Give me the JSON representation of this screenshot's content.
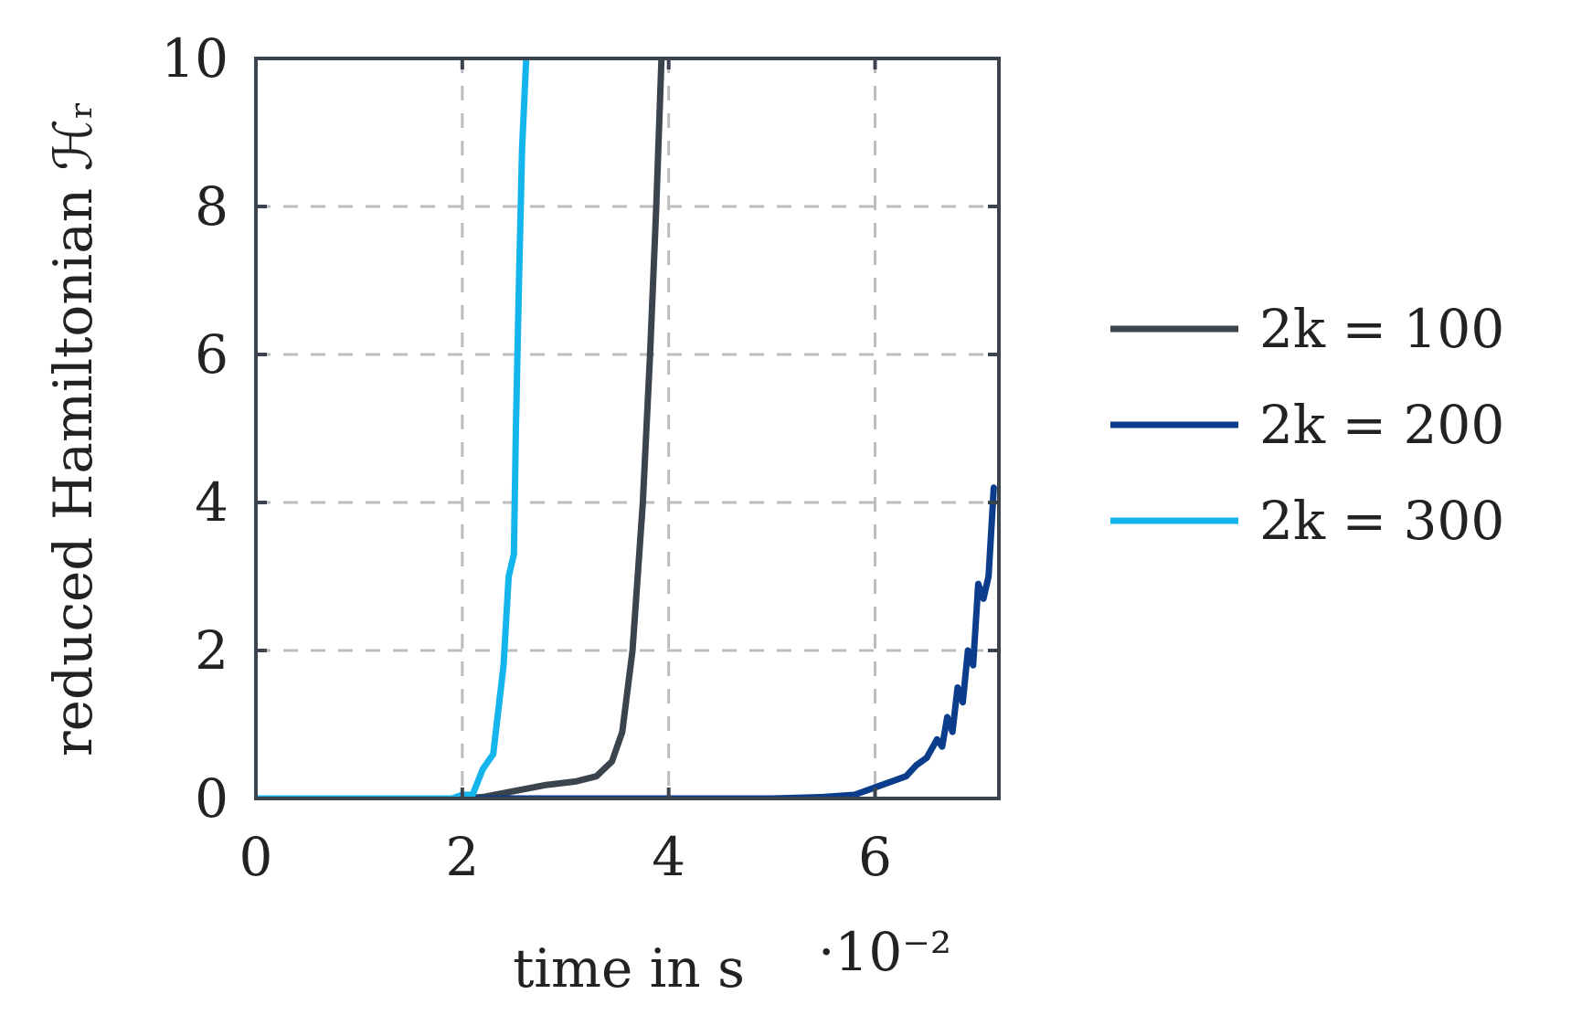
{
  "chart_data": {
    "type": "line",
    "xlabel": "time in s",
    "x_scale_label": "·10⁻²",
    "ylabel": "reduced Hamiltonian ℋᵣ",
    "xlim": [
      0,
      7.2
    ],
    "ylim": [
      0,
      10
    ],
    "x_ticks": [
      "0",
      "2",
      "4",
      "6"
    ],
    "y_ticks": [
      "0",
      "2",
      "4",
      "6",
      "8",
      "10"
    ],
    "grid": true,
    "legend_position": "outside-right",
    "series": [
      {
        "name": "2k = 100",
        "color": "#3b434d",
        "points": [
          [
            0,
            0
          ],
          [
            2.0,
            0
          ],
          [
            2.2,
            0.02
          ],
          [
            2.5,
            0.1
          ],
          [
            2.8,
            0.18
          ],
          [
            3.1,
            0.23
          ],
          [
            3.3,
            0.3
          ],
          [
            3.45,
            0.5
          ],
          [
            3.55,
            0.9
          ],
          [
            3.65,
            2.0
          ],
          [
            3.75,
            4.0
          ],
          [
            3.82,
            6.0
          ],
          [
            3.88,
            8.0
          ],
          [
            3.93,
            10.0
          ]
        ]
      },
      {
        "name": "2k = 200",
        "color": "#0b3d8c",
        "points": [
          [
            0,
            0
          ],
          [
            5.0,
            0
          ],
          [
            5.5,
            0.02
          ],
          [
            5.8,
            0.05
          ],
          [
            6.0,
            0.15
          ],
          [
            6.1,
            0.2
          ],
          [
            6.2,
            0.25
          ],
          [
            6.3,
            0.3
          ],
          [
            6.4,
            0.45
          ],
          [
            6.5,
            0.55
          ],
          [
            6.6,
            0.8
          ],
          [
            6.65,
            0.7
          ],
          [
            6.7,
            1.1
          ],
          [
            6.75,
            0.9
          ],
          [
            6.8,
            1.5
          ],
          [
            6.85,
            1.3
          ],
          [
            6.9,
            2.0
          ],
          [
            6.95,
            1.8
          ],
          [
            7.0,
            2.9
          ],
          [
            7.05,
            2.7
          ],
          [
            7.1,
            3.0
          ],
          [
            7.15,
            4.2
          ]
        ]
      },
      {
        "name": "2k = 300",
        "color": "#14b4ec",
        "points": [
          [
            0,
            0
          ],
          [
            1.9,
            0
          ],
          [
            2.0,
            0.05
          ],
          [
            2.1,
            0.05
          ],
          [
            2.2,
            0.4
          ],
          [
            2.3,
            0.6
          ],
          [
            2.4,
            1.8
          ],
          [
            2.45,
            3.0
          ],
          [
            2.5,
            3.3
          ],
          [
            2.52,
            5.0
          ],
          [
            2.55,
            7.0
          ],
          [
            2.58,
            8.8
          ],
          [
            2.62,
            10.0
          ]
        ]
      }
    ]
  }
}
